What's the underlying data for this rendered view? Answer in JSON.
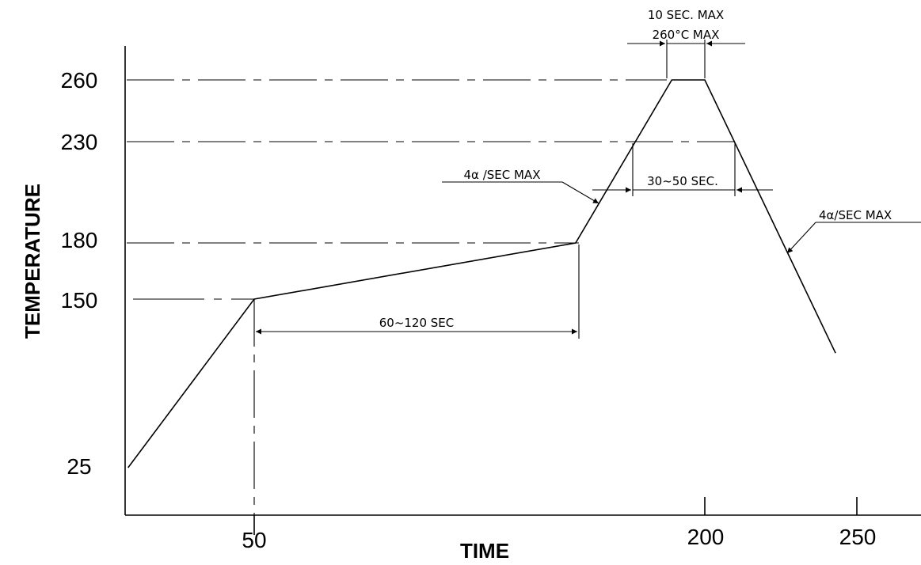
{
  "chart_data": {
    "type": "line",
    "xlabel": "TIME",
    "ylabel": "TEMPERATURE",
    "x_ticks": [
      "50",
      "200",
      "250"
    ],
    "y_ticks": [
      "25",
      "150",
      "180",
      "230",
      "260"
    ],
    "series": [
      {
        "points": [
          {
            "x": 8,
            "y": 25
          },
          {
            "x": 50,
            "y": 150
          },
          {
            "x": 157,
            "y": 180
          },
          {
            "x": 189,
            "y": 260
          },
          {
            "x": 200,
            "y": 260
          },
          {
            "x": 243,
            "y": 110
          }
        ]
      }
    ],
    "reference_lines": [
      150,
      180,
      230,
      260
    ],
    "annotations": {
      "soak_time": "60~120 SEC",
      "ramp_up": "4α /SEC MAX",
      "time_above_230": "30~50 SEC.",
      "ramp_down": "4α/SEC MAX",
      "peak_time": "10 SEC. MAX",
      "peak_temp": "260°C MAX"
    },
    "grid": false
  }
}
